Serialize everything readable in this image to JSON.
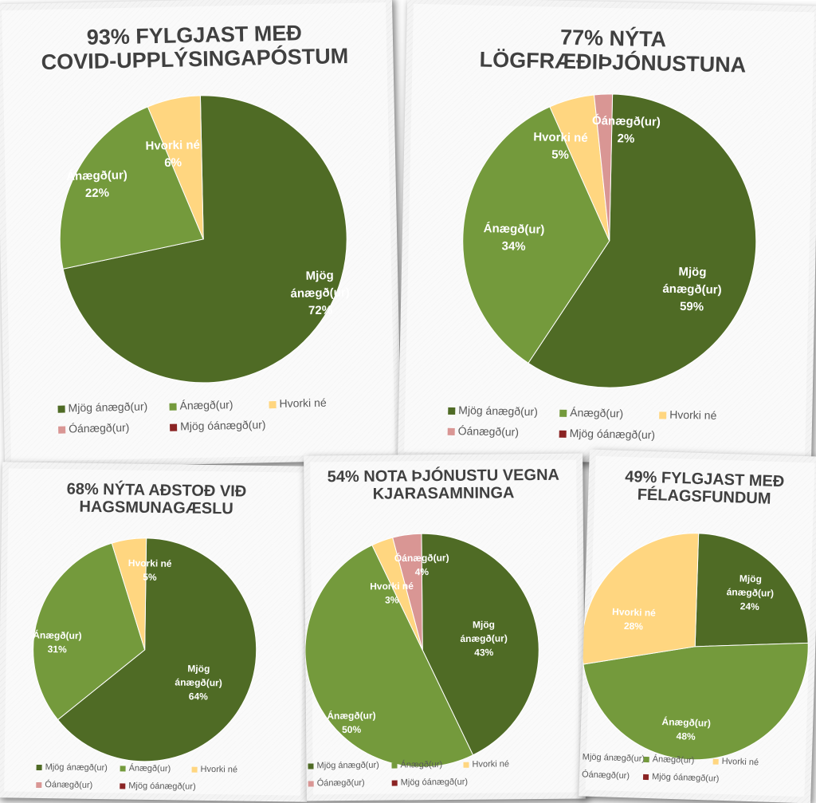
{
  "colors": {
    "Mjög ánægð(ur)": "#4f6b25",
    "Ánægð(ur)": "#749a3c",
    "Hvorki né": "#ffd680",
    "Óánægð(ur)": "#d99694",
    "Mjög óánægð(ur)": "#8b2424"
  },
  "legend_labels": [
    "Mjög ánægð(ur)",
    "Ánægð(ur)",
    "Hvorki né",
    "Óánægð(ur)",
    "Mjög óánægð(ur)"
  ],
  "chart_data": [
    {
      "type": "pie",
      "title_lines": [
        "93% FYLGJAST MEÐ",
        "COVID-UPPLÝSINGAPÓSTUM"
      ],
      "legend_position": "bottom",
      "categories": [
        "Mjög ánægð(ur)",
        "Ánægð(ur)",
        "Hvorki né"
      ],
      "values": [
        72,
        22,
        6
      ],
      "data_labels": [
        [
          "Mjög",
          "ánægð(ur)",
          "72%"
        ],
        [
          "Ánægð(ur)",
          "22%"
        ],
        [
          "Hvorki né",
          "6%"
        ]
      ]
    },
    {
      "type": "pie",
      "title_lines": [
        "77% NÝTA",
        "LÖGFRÆÐIÞJÓNUSTUNA"
      ],
      "legend_position": "bottom",
      "categories": [
        "Mjög ánægð(ur)",
        "Ánægð(ur)",
        "Hvorki né",
        "Óánægð(ur)"
      ],
      "values": [
        59,
        34,
        5,
        2
      ],
      "data_labels": [
        [
          "Mjög",
          "ánægð(ur)",
          "59%"
        ],
        [
          "Ánægð(ur)",
          "34%"
        ],
        [
          "Hvorki né",
          "5%"
        ],
        [
          "Óánægð(ur)",
          "2%"
        ]
      ]
    },
    {
      "type": "pie",
      "title_lines": [
        "68% NÝTA AÐSTOÐ VIÐ",
        "HAGSMUNAGÆSLU"
      ],
      "legend_position": "bottom",
      "categories": [
        "Mjög ánægð(ur)",
        "Ánægð(ur)",
        "Hvorki né"
      ],
      "values": [
        64,
        31,
        5
      ],
      "data_labels": [
        [
          "Mjög",
          "ánægð(ur)",
          "64%"
        ],
        [
          "Ánægð(ur)",
          "31%"
        ],
        [
          "Hvorki né",
          "5%"
        ]
      ]
    },
    {
      "type": "pie",
      "title_lines": [
        "54% NOTA ÞJÓNUSTU VEGNA",
        "KJARASAMNINGA"
      ],
      "legend_position": "bottom",
      "categories": [
        "Mjög ánægð(ur)",
        "Ánægð(ur)",
        "Hvorki né",
        "Óánægð(ur)"
      ],
      "values": [
        43,
        50,
        3,
        4
      ],
      "data_labels": [
        [
          "Mjög",
          "ánægð(ur)",
          "43%"
        ],
        [
          "Ánægð(ur)",
          "50%"
        ],
        [
          "Hvorki né",
          "3%"
        ],
        [
          "Óánægð(ur)",
          "4%"
        ]
      ]
    },
    {
      "type": "pie",
      "title_lines": [
        "49% FYLGJAST MEÐ",
        "FÉLAGSFUNDUM"
      ],
      "legend_position": "bottom",
      "categories": [
        "Mjög ánægð(ur)",
        "Ánægð(ur)",
        "Hvorki né"
      ],
      "values": [
        24,
        48,
        28
      ],
      "data_labels": [
        [
          "Mjög",
          "ánægð(ur)",
          "24%"
        ],
        [
          "Ánægð(ur)",
          "48%"
        ],
        [
          "Hvorki né",
          "28%"
        ]
      ]
    }
  ]
}
